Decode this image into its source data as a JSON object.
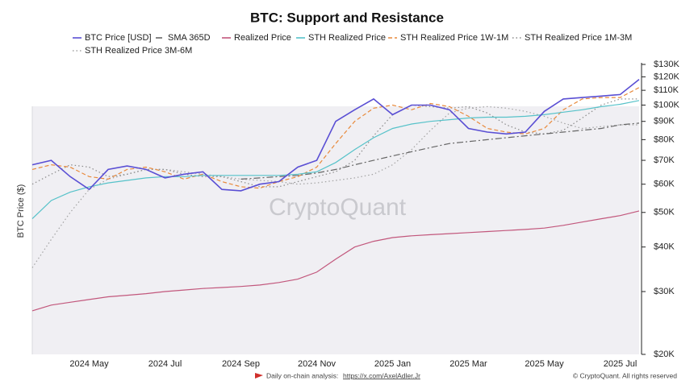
{
  "chart_data": {
    "type": "line",
    "title": "BTC: Support and Resistance",
    "y_label": "BTC Price ($)",
    "watermark": "CryptoQuant",
    "source_label": "Daily on-chain analysis:",
    "source_url": "https://x.com/AxelAdler.Jr",
    "copyright": "© CryptoQuant. All rights reserved",
    "log_scale": true,
    "categories": [
      null,
      null,
      null,
      "2024 May",
      null,
      null,
      null,
      "2024 Jul",
      null,
      null,
      null,
      "2024 Sep",
      null,
      null,
      null,
      "2024 Nov",
      null,
      null,
      null,
      "2025 Jan",
      null,
      null,
      null,
      "2025 Mar",
      null,
      null,
      null,
      "2025 May",
      null,
      null,
      null,
      "2025 Jul",
      null
    ],
    "ylim": [
      20000,
      130000
    ],
    "yticks": [
      {
        "value": 20000,
        "label": "$20K"
      },
      {
        "value": 30000,
        "label": "$30K"
      },
      {
        "value": 40000,
        "label": "$40K"
      },
      {
        "value": 50000,
        "label": "$50K"
      },
      {
        "value": 60000,
        "label": "$60K"
      },
      {
        "value": 70000,
        "label": "$70K"
      },
      {
        "value": 80000,
        "label": "$80K"
      },
      {
        "value": 90000,
        "label": "$90K"
      },
      {
        "value": 100000,
        "label": "$100K"
      },
      {
        "value": 110000,
        "label": "$110K"
      },
      {
        "value": 120000,
        "label": "$120K"
      },
      {
        "value": 130000,
        "label": "$130K"
      }
    ],
    "series": [
      {
        "name": "BTC Price [USD]",
        "color": "#5a4fd4",
        "style": "solid",
        "values": [
          68000,
          70000,
          63000,
          58000,
          66000,
          67500,
          66000,
          62500,
          64000,
          65000,
          58000,
          57500,
          60000,
          61000,
          67000,
          70000,
          90000,
          97000,
          104000,
          94000,
          100000,
          100000,
          97000,
          86000,
          84000,
          83000,
          84000,
          96000,
          104000,
          105000,
          106000,
          107000,
          118000
        ]
      },
      {
        "name": "SMA 365D",
        "color": "#666666",
        "style": "dashdot",
        "values": [
          null,
          null,
          null,
          null,
          null,
          null,
          null,
          null,
          null,
          null,
          null,
          62000,
          62500,
          63000,
          63500,
          64500,
          66000,
          68000,
          70000,
          72000,
          74000,
          76000,
          78000,
          79000,
          80000,
          81000,
          82000,
          83000,
          84000,
          85000,
          86000,
          88000,
          89000
        ]
      },
      {
        "name": "Realized Price",
        "color": "#c2577c",
        "style": "solid",
        "values": [
          26500,
          27500,
          28000,
          28500,
          29000,
          29300,
          29600,
          30000,
          30300,
          30600,
          30800,
          31000,
          31300,
          31800,
          32500,
          34000,
          37000,
          40000,
          41500,
          42500,
          43000,
          43300,
          43600,
          43900,
          44200,
          44500,
          44800,
          45200,
          46000,
          47000,
          48000,
          49000,
          50500
        ]
      },
      {
        "name": "STH Realized Price",
        "color": "#56c2c9",
        "style": "solid",
        "values": [
          48000,
          54000,
          57000,
          59000,
          60500,
          61500,
          62500,
          63000,
          63000,
          63500,
          63500,
          63500,
          63500,
          63500,
          64000,
          65000,
          69000,
          75000,
          81000,
          86000,
          88500,
          90000,
          91000,
          92000,
          92500,
          92500,
          93000,
          94000,
          95500,
          97000,
          99000,
          100500,
          103000
        ]
      },
      {
        "name": "STH Realized Price 1W-1M",
        "color": "#e8893a",
        "style": "dashed",
        "values": [
          66000,
          68000,
          67000,
          63000,
          62000,
          66000,
          67000,
          65000,
          62000,
          64000,
          61000,
          59000,
          58500,
          61000,
          63000,
          67000,
          78000,
          90000,
          98000,
          100000,
          97000,
          101000,
          99000,
          93000,
          86000,
          84000,
          83000,
          86000,
          97000,
          104000,
          105000,
          105000,
          112000
        ]
      },
      {
        "name": "STH Realized Price 1M-3M",
        "color": "#8a8a8a",
        "style": "dotted",
        "values": [
          60000,
          64000,
          68000,
          67000,
          63000,
          64000,
          66000,
          66000,
          64000,
          63000,
          63000,
          61000,
          59000,
          59000,
          61000,
          63000,
          65000,
          70000,
          82000,
          94000,
          100000,
          99000,
          98000,
          99000,
          95000,
          88000,
          84000,
          83000,
          85000,
          92000,
          100000,
          104000,
          104000
        ]
      },
      {
        "name": "STH Realized Price 3M-6M",
        "color": "#a3a3a3",
        "style": "dotted",
        "values": [
          35000,
          42000,
          50000,
          58000,
          62000,
          64000,
          66000,
          66000,
          65000,
          64000,
          63000,
          62000,
          61500,
          61000,
          60000,
          60500,
          61500,
          62500,
          64000,
          68000,
          75000,
          85000,
          95000,
          98000,
          99000,
          98000,
          96000,
          93000,
          89000,
          86000,
          87000,
          88000,
          88000
        ]
      }
    ]
  }
}
